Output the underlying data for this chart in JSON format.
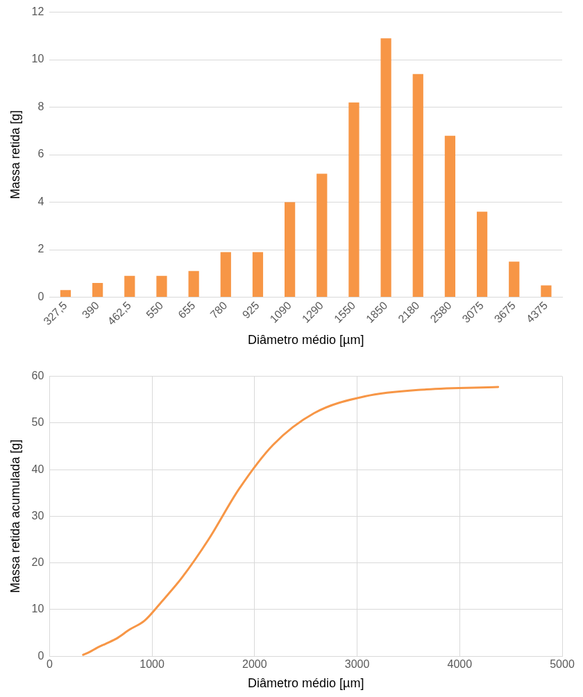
{
  "chart_data": [
    {
      "type": "bar",
      "xlabel": "Diâmetro médio [µm]",
      "ylabel": "Massa retida [g]",
      "categories": [
        "327,5",
        "390",
        "462,5",
        "550",
        "655",
        "780",
        "925",
        "1090",
        "1290",
        "1550",
        "1850",
        "2180",
        "2580",
        "3075",
        "3675",
        "4375"
      ],
      "values": [
        0.3,
        0.6,
        0.9,
        0.9,
        1.1,
        1.9,
        1.9,
        4.0,
        5.2,
        8.2,
        10.9,
        9.4,
        6.8,
        3.6,
        1.5,
        0.5
      ],
      "color": "#f79646",
      "ylim": [
        0,
        12
      ],
      "yticks": [
        0,
        2,
        4,
        6,
        8,
        10,
        12
      ],
      "grid": "y",
      "legend": false
    },
    {
      "type": "line",
      "xlabel": "Diâmetro médio [µm]",
      "ylabel": "Massa retida acumulada [g]",
      "x": [
        327.5,
        390,
        462.5,
        550,
        655,
        780,
        925,
        1090,
        1290,
        1550,
        1850,
        2180,
        2580,
        3075,
        3675,
        4375
      ],
      "values": [
        0.3,
        0.9,
        1.8,
        2.7,
        3.8,
        5.7,
        7.6,
        11.6,
        16.8,
        25.0,
        35.9,
        45.3,
        52.1,
        55.7,
        57.2,
        57.7
      ],
      "color": "#f79646",
      "xlim": [
        0,
        5000
      ],
      "xticks": [
        0,
        1000,
        2000,
        3000,
        4000,
        5000
      ],
      "ylim": [
        0,
        60
      ],
      "yticks": [
        0,
        10,
        20,
        30,
        40,
        50,
        60
      ],
      "grid": true,
      "marker": "none",
      "legend": false
    }
  ]
}
